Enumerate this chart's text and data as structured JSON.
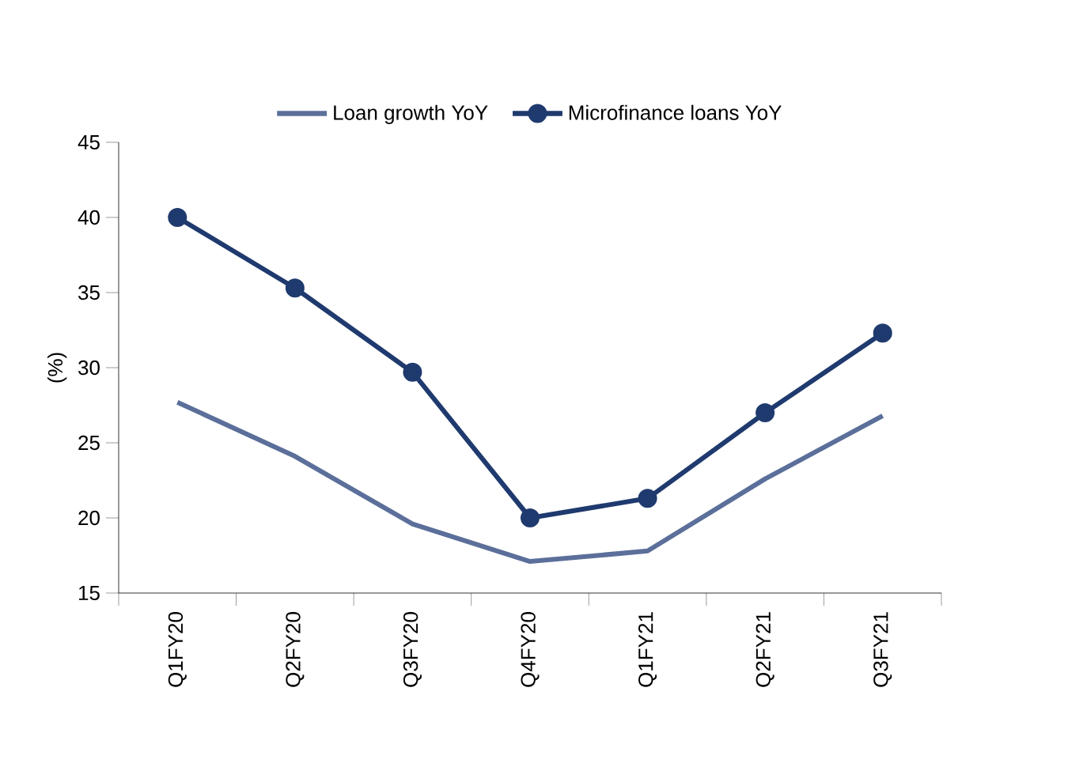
{
  "chart_data": {
    "type": "line",
    "ylabel": "(%)",
    "categories": [
      "Q1FY20",
      "Q2FY20",
      "Q3FY20",
      "Q4FY20",
      "Q1FY21",
      "Q2FY21",
      "Q3FY21"
    ],
    "series": [
      {
        "name": "Loan growth YoY",
        "color": "#5b6f9a",
        "marker": "none",
        "values": [
          27.7,
          24.1,
          19.6,
          17.1,
          17.8,
          22.6,
          26.8
        ]
      },
      {
        "name": "Microfinance loans YoY",
        "color": "#1f3a6e",
        "marker": "circle",
        "values": [
          40,
          35.3,
          29.7,
          20,
          21.3,
          27,
          32.3
        ]
      }
    ],
    "ylim": [
      15,
      45
    ],
    "yticks": [
      15,
      20,
      25,
      30,
      35,
      40,
      45
    ],
    "grid": false,
    "legend": "top",
    "line_style": "solid"
  }
}
